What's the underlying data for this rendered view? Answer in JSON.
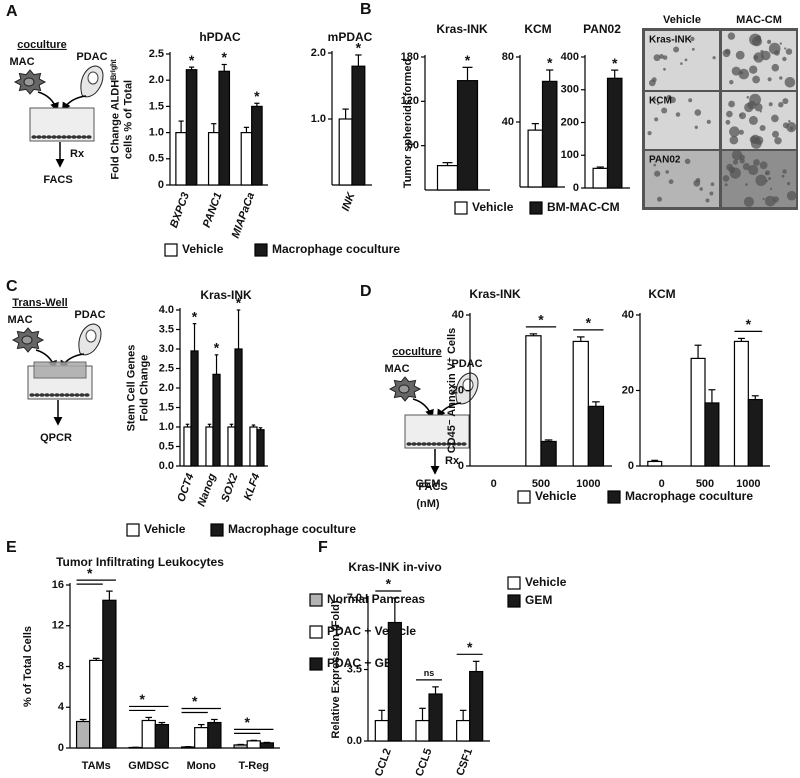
{
  "figure": {
    "panel_letters": [
      "A",
      "B",
      "C",
      "D",
      "E",
      "F"
    ],
    "diagrams": [
      {
        "title": "coculture",
        "mac": "MAC",
        "pdac": "PDAC",
        "treatment": "Rx",
        "readout": "FACS"
      },
      {
        "title": "Trans-Well",
        "mac": "MAC",
        "pdac": "PDAC",
        "readout": "QPCR"
      },
      {
        "title": "coculture",
        "mac": "MAC",
        "pdac": "PDAC",
        "treatment": "Rx",
        "readout": "FACS"
      }
    ],
    "micrographs": {
      "columns": [
        "Vehicle",
        "MAC-CM"
      ],
      "rows": [
        "Kras-INK",
        "KCM",
        "PAN02"
      ]
    }
  },
  "chart_data": [
    {
      "type": "bar",
      "title": "hPDAC",
      "ylabel": [
        "Fold Change ALDHᴮʳⁱᵍʰᵗ",
        "cells % of Total"
      ],
      "categories": [
        "BXPC3",
        "PANC1",
        "MIAPaCa"
      ],
      "rotated_categories": true,
      "series": [
        {
          "name": "Vehicle",
          "color": "#ffffff",
          "values": [
            1.0,
            1.0,
            1.0
          ],
          "errors": [
            0.22,
            0.17,
            0.1
          ]
        },
        {
          "name": "Macrophage coculture",
          "color": "#1a1a1a",
          "values": [
            2.2,
            2.17,
            1.5
          ],
          "errors": [
            0.05,
            0.13,
            0.06
          ]
        }
      ],
      "significance": [
        "*",
        "*",
        "*"
      ],
      "legend": "below",
      "ylim": [
        0,
        2.5
      ],
      "yticks": [
        0,
        0.5,
        {
          "value": 1,
          "label": "1.0"
        },
        1.5,
        {
          "value": 2,
          "label": "2.0"
        },
        2.5
      ]
    },
    {
      "type": "bar",
      "title": "mPDAC",
      "categories": [
        "INK"
      ],
      "rotated_categories": true,
      "series": [
        {
          "color": "#ffffff",
          "values": [
            1.0
          ],
          "errors": [
            0.15
          ]
        },
        {
          "color": "#1a1a1a",
          "values": [
            1.8
          ],
          "errors": [
            0.17
          ]
        }
      ],
      "significance": [
        "*"
      ],
      "ylim": [
        0,
        2
      ],
      "yticks": [
        {
          "value": 1,
          "label": "1.0"
        },
        {
          "value": 2,
          "label": "2.0"
        }
      ]
    },
    {
      "type": "bar",
      "title": "Kras-INK",
      "ylabel": [
        "Tumor spheroids formed"
      ],
      "categories": [
        null
      ],
      "series": [
        {
          "name": "Vehicle",
          "color": "#ffffff",
          "values": [
            33
          ],
          "errors": [
            4
          ]
        },
        {
          "name": "BM-MAC-CM",
          "color": "#1a1a1a",
          "values": [
            148
          ],
          "errors": [
            18
          ]
        }
      ],
      "significance": [
        "*"
      ],
      "legend": "below",
      "ylim": [
        0,
        180
      ],
      "yticks": [
        60,
        120,
        180
      ]
    },
    {
      "type": "bar",
      "title": "KCM",
      "categories": [
        null
      ],
      "series": [
        {
          "color": "#ffffff",
          "values": [
            35
          ],
          "errors": [
            4
          ]
        },
        {
          "color": "#1a1a1a",
          "values": [
            65
          ],
          "errors": [
            7
          ]
        }
      ],
      "significance": [
        "*"
      ],
      "ylim": [
        0,
        80
      ],
      "yticks": [
        40,
        80
      ]
    },
    {
      "type": "bar",
      "title": "PAN02",
      "categories": [
        null
      ],
      "series": [
        {
          "color": "#ffffff",
          "values": [
            60
          ],
          "errors": [
            4
          ]
        },
        {
          "color": "#1a1a1a",
          "values": [
            335
          ],
          "errors": [
            25
          ]
        }
      ],
      "significance": [
        "*"
      ],
      "ylim": [
        0,
        400
      ],
      "yticks": [
        0,
        100,
        200,
        300,
        400
      ]
    },
    {
      "type": "bar",
      "title": "Kras-INK",
      "ylabel": [
        "Stem Cell Genes",
        "Fold Change"
      ],
      "categories": [
        "OCT4",
        "Nanog",
        "SOX2",
        "KLF4"
      ],
      "rotated_categories": true,
      "series": [
        {
          "name": "Vehicle",
          "color": "#ffffff",
          "values": [
            1.0,
            1.0,
            1.0,
            1.0
          ],
          "errors": [
            0.07,
            0.07,
            0.07,
            0.05
          ]
        },
        {
          "name": "Macrophage coculture",
          "color": "#1a1a1a",
          "values": [
            2.95,
            2.35,
            3.0,
            0.93
          ],
          "errors": [
            0.7,
            0.5,
            1.0,
            0.05
          ]
        }
      ],
      "significance": [
        "*",
        "*",
        "*",
        null
      ],
      "legend": "below",
      "ylim": [
        0,
        4
      ],
      "yticks": [
        {
          "value": 0,
          "label": "0.0"
        },
        0.5,
        {
          "value": 1,
          "label": "1.0"
        },
        1.5,
        {
          "value": 2,
          "label": "2.0"
        },
        2.5,
        {
          "value": 3,
          "label": "3.0"
        },
        3.5,
        {
          "value": 4,
          "label": "4.0"
        }
      ]
    },
    {
      "type": "bar",
      "title": "Kras-INK",
      "ylabel": [
        "CD45⁻ Annexin V⁺ Cells"
      ],
      "xlabel": "GEM",
      "xunit": "(nM)",
      "categories": [
        "0",
        "500",
        "1000"
      ],
      "series": [
        {
          "name": "Vehicle",
          "color": "#ffffff",
          "values": [
            null,
            34.5,
            33
          ],
          "errors": [
            null,
            0.5,
            1.2
          ]
        },
        {
          "name": "Macrophage coculture",
          "color": "#1a1a1a",
          "values": [
            null,
            6.5,
            15.8
          ],
          "errors": [
            null,
            0.4,
            1.2
          ]
        }
      ],
      "significance": [
        null,
        "*",
        "*"
      ],
      "significance_bracket": true,
      "legend": "below",
      "ylim": [
        0,
        40
      ],
      "yticks": [
        0,
        20,
        40
      ]
    },
    {
      "type": "bar",
      "title": "KCM",
      "categories": [
        "0",
        "500",
        "1000"
      ],
      "series": [
        {
          "color": "#ffffff",
          "values": [
            1.2,
            28.5,
            33
          ],
          "errors": [
            0.3,
            3.5,
            0.8
          ]
        },
        {
          "color": "#1a1a1a",
          "values": [
            null,
            16.7,
            17.6
          ],
          "errors": [
            null,
            3.5,
            1
          ]
        }
      ],
      "significance": [
        null,
        null,
        "*"
      ],
      "significance_bracket": true,
      "ylim": [
        0,
        40
      ],
      "yticks": [
        0,
        20,
        40
      ]
    },
    {
      "type": "bar",
      "title": "Tumor Infiltrating Leukocytes",
      "ylabel": [
        "% of Total Cells"
      ],
      "categories": [
        "TAMs",
        "GMDSC",
        "Mono",
        "T-Reg"
      ],
      "series": [
        {
          "name": "Normal Pancreas",
          "color": "#b3b3b3",
          "values": [
            2.6,
            0.05,
            0.1,
            0.3
          ],
          "errors": [
            0.2,
            0.02,
            0.03,
            0.05
          ]
        },
        {
          "name": "PDAC + Vehicle",
          "color": "#ffffff",
          "values": [
            8.6,
            2.7,
            2.0,
            0.7
          ],
          "errors": [
            0.2,
            0.3,
            0.3,
            0.05
          ]
        },
        {
          "name": "PDAC + GEM",
          "color": "#1a1a1a",
          "values": [
            14.5,
            2.3,
            2.5,
            0.5
          ],
          "errors": [
            0.9,
            0.2,
            0.3,
            0.05
          ]
        }
      ],
      "significance": [
        "*",
        "*",
        "*",
        "*"
      ],
      "significance_bracket": true,
      "legend": "right",
      "ylim": [
        0,
        16
      ],
      "yticks": [
        0,
        4,
        8,
        12,
        16
      ]
    },
    {
      "type": "bar",
      "title": "Kras-INK in-vivo",
      "ylabel": [
        "Relative Expression (Fold)"
      ],
      "categories": [
        "CCL2",
        "CCL5",
        "CSF1"
      ],
      "rotated_categories": true,
      "series": [
        {
          "name": "Vehicle",
          "color": "#ffffff",
          "values": [
            1.0,
            1.0,
            1.0
          ],
          "errors": [
            0.5,
            0.6,
            0.5
          ]
        },
        {
          "name": "GEM",
          "color": "#1a1a1a",
          "values": [
            5.8,
            2.3,
            3.4
          ],
          "errors": [
            1.2,
            0.35,
            0.5
          ]
        }
      ],
      "significance": [
        "*",
        "ns",
        "*"
      ],
      "significance_bracket": true,
      "legend": "right",
      "ylim": [
        0,
        7
      ],
      "yticks": [
        {
          "value": 0,
          "label": "0.0"
        },
        3.5,
        {
          "value": 7,
          "label": "7.0"
        }
      ]
    }
  ]
}
